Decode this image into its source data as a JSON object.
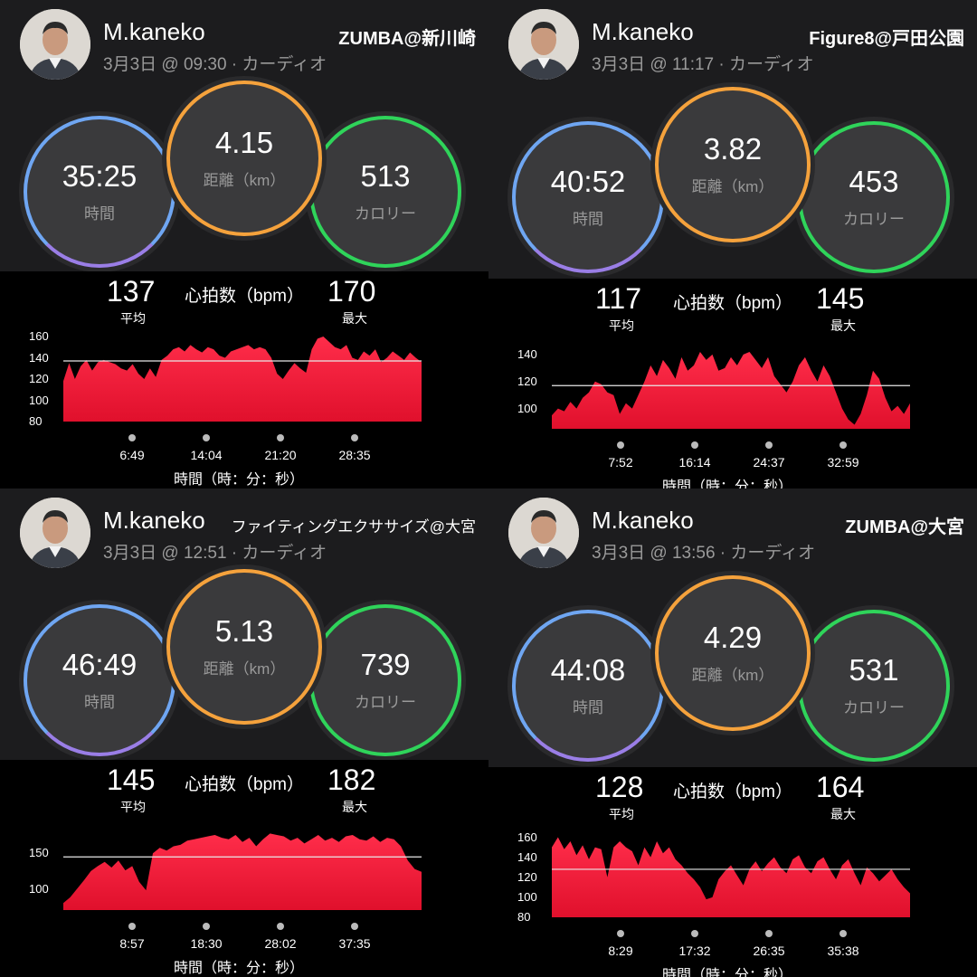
{
  "panels": [
    {
      "user": "M.kaneko",
      "meta": "3月3日 @ 09:30 · カーディオ",
      "activity": "ZUMBA@新川崎",
      "time": "35:25",
      "time_label": "時間",
      "distance": "4.15",
      "distance_label": "距離（km）",
      "calories": "513",
      "calories_label": "カロリー",
      "hr_avg": "137",
      "hr_avg_label": "平均",
      "hr_title": "心拍数（bpm）",
      "hr_max": "170",
      "hr_max_label": "最大",
      "x_axis_title": "時間（時：分：秒）",
      "chart_data": {
        "type": "area",
        "y_ticks": [
          "160",
          "140",
          "120",
          "100",
          "80"
        ],
        "ylim": [
          80,
          160
        ],
        "avg_line": 137,
        "x_ticks": [
          "6:49",
          "14:04",
          "21:20",
          "28:35"
        ],
        "values": [
          118,
          135,
          120,
          132,
          138,
          128,
          136,
          138,
          136,
          134,
          130,
          128,
          134,
          125,
          120,
          130,
          122,
          138,
          142,
          148,
          150,
          146,
          152,
          148,
          145,
          150,
          148,
          142,
          140,
          146,
          148,
          150,
          152,
          148,
          150,
          148,
          140,
          125,
          120,
          128,
          135,
          130,
          126,
          148,
          158,
          160,
          155,
          150,
          148,
          152,
          140,
          138,
          146,
          142,
          148,
          136,
          140,
          146,
          142,
          138,
          145,
          140,
          136
        ]
      }
    },
    {
      "user": "M.kaneko",
      "meta": "3月3日 @ 11:17 · カーディオ",
      "activity": "Figure8@戸田公園",
      "time": "40:52",
      "time_label": "時間",
      "distance": "3.82",
      "distance_label": "距離（km）",
      "calories": "453",
      "calories_label": "カロリー",
      "hr_avg": "117",
      "hr_avg_label": "平均",
      "hr_title": "心拍数（bpm）",
      "hr_max": "145",
      "hr_max_label": "最大",
      "x_axis_title": "時間（時：分：秒）",
      "chart_data": {
        "type": "area",
        "y_ticks": [
          "140",
          "120",
          "100"
        ],
        "ylim": [
          85,
          148
        ],
        "avg_line": 117,
        "x_ticks": [
          "7:52",
          "16:14",
          "24:37",
          "32:59"
        ],
        "values": [
          95,
          100,
          98,
          105,
          100,
          108,
          112,
          120,
          118,
          112,
          110,
          96,
          104,
          100,
          110,
          120,
          132,
          124,
          136,
          130,
          122,
          138,
          128,
          132,
          142,
          136,
          140,
          128,
          130,
          138,
          132,
          140,
          142,
          136,
          130,
          138,
          124,
          118,
          112,
          120,
          132,
          138,
          128,
          120,
          132,
          124,
          112,
          100,
          92,
          88,
          96,
          110,
          128,
          122,
          108,
          98,
          102,
          96,
          104
        ]
      }
    },
    {
      "user": "M.kaneko",
      "meta": "3月3日 @ 12:51 · カーディオ",
      "activity": "ファイティングエクササイズ@大宮",
      "time": "46:49",
      "time_label": "時間",
      "distance": "5.13",
      "distance_label": "距離（km）",
      "calories": "739",
      "calories_label": "カロリー",
      "hr_avg": "145",
      "hr_avg_label": "平均",
      "hr_title": "心拍数（bpm）",
      "hr_max": "182",
      "hr_max_label": "最大",
      "x_axis_title": "時間（時：分：秒）",
      "chart_data": {
        "type": "area",
        "y_ticks": [
          "150",
          "100"
        ],
        "ylim": [
          70,
          190
        ],
        "avg_line": 145,
        "x_ticks": [
          "8:57",
          "18:30",
          "28:02",
          "37:35"
        ],
        "values": [
          80,
          88,
          100,
          112,
          125,
          132,
          138,
          130,
          140,
          126,
          132,
          110,
          98,
          150,
          158,
          154,
          160,
          162,
          168,
          170,
          172,
          174,
          176,
          172,
          170,
          176,
          166,
          172,
          160,
          170,
          178,
          176,
          174,
          168,
          172,
          164,
          170,
          176,
          168,
          172,
          166,
          174,
          176,
          170,
          168,
          174,
          166,
          172,
          170,
          160,
          140,
          128,
          124
        ]
      }
    },
    {
      "user": "M.kaneko",
      "meta": "3月3日 @ 13:56 · カーディオ",
      "activity": "ZUMBA@大宮",
      "time": "44:08",
      "time_label": "時間",
      "distance": "4.29",
      "distance_label": "距離（km）",
      "calories": "531",
      "calories_label": "カロリー",
      "hr_avg": "128",
      "hr_avg_label": "平均",
      "hr_title": "心拍数（bpm）",
      "hr_max": "164",
      "hr_max_label": "最大",
      "x_axis_title": "時間（時：分：秒）",
      "chart_data": {
        "type": "area",
        "y_ticks": [
          "160",
          "140",
          "120",
          "100",
          "80"
        ],
        "ylim": [
          80,
          165
        ],
        "avg_line": 128,
        "x_ticks": [
          "8:29",
          "17:32",
          "26:35",
          "35:38"
        ],
        "values": [
          150,
          160,
          148,
          156,
          142,
          152,
          138,
          150,
          148,
          120,
          150,
          156,
          150,
          146,
          132,
          150,
          140,
          156,
          144,
          150,
          138,
          132,
          124,
          118,
          110,
          98,
          100,
          118,
          126,
          132,
          122,
          112,
          128,
          136,
          126,
          134,
          140,
          130,
          124,
          138,
          142,
          130,
          124,
          136,
          140,
          128,
          118,
          132,
          138,
          124,
          112,
          130,
          124,
          116,
          122,
          128,
          118,
          110,
          104
        ]
      }
    }
  ]
}
